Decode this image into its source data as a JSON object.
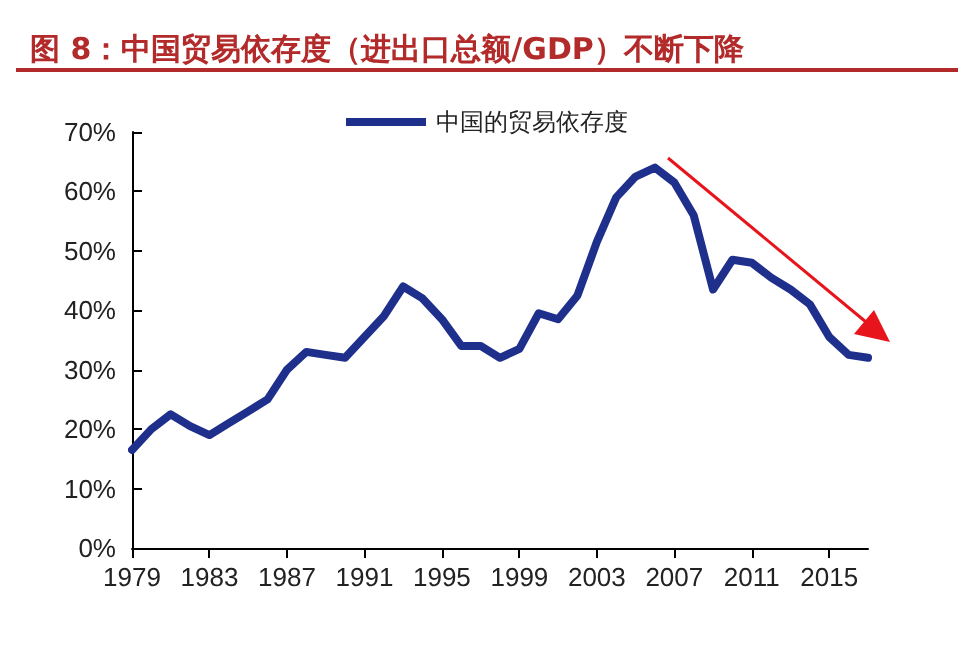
{
  "chart_data": {
    "type": "line",
    "title": "图 8：中国贸易依存度（进出口总额/GDP）不断下降",
    "categories": [
      "1979",
      null,
      null,
      null,
      "1983",
      null,
      null,
      null,
      "1987",
      null,
      null,
      null,
      "1991",
      null,
      null,
      null,
      "1995",
      null,
      null,
      null,
      "1999",
      null,
      null,
      null,
      "2003",
      null,
      null,
      null,
      "2007",
      null,
      null,
      null,
      "2011",
      null,
      null,
      null,
      "2015",
      null,
      null
    ],
    "series": [
      {
        "name": "中国的贸易依存度",
        "color": "#1f2f8c",
        "values": [
          16.5,
          20,
          22.5,
          20.5,
          19,
          21,
          23,
          25,
          30,
          33,
          32.5,
          32,
          35.5,
          39,
          44,
          42,
          38.5,
          34,
          34,
          32,
          33.5,
          39.5,
          38.5,
          42.5,
          51.5,
          59,
          62.5,
          64,
          61.5,
          56,
          43.5,
          48.5,
          48,
          45.5,
          43.5,
          41,
          35.5,
          32.5,
          32
        ]
      }
    ],
    "ylim": [
      0,
      70
    ],
    "yticks": [
      {
        "value": 0,
        "label": "0%"
      },
      {
        "value": 10,
        "label": "10%"
      },
      {
        "value": 20,
        "label": "20%"
      },
      {
        "value": 30,
        "label": "30%"
      },
      {
        "value": 40,
        "label": "40%"
      },
      {
        "value": 50,
        "label": "50%"
      },
      {
        "value": 60,
        "label": "60%"
      },
      {
        "value": 70,
        "label": "70%"
      }
    ],
    "grid": false,
    "legend": "top",
    "marker": "none",
    "line_style": "solid"
  }
}
